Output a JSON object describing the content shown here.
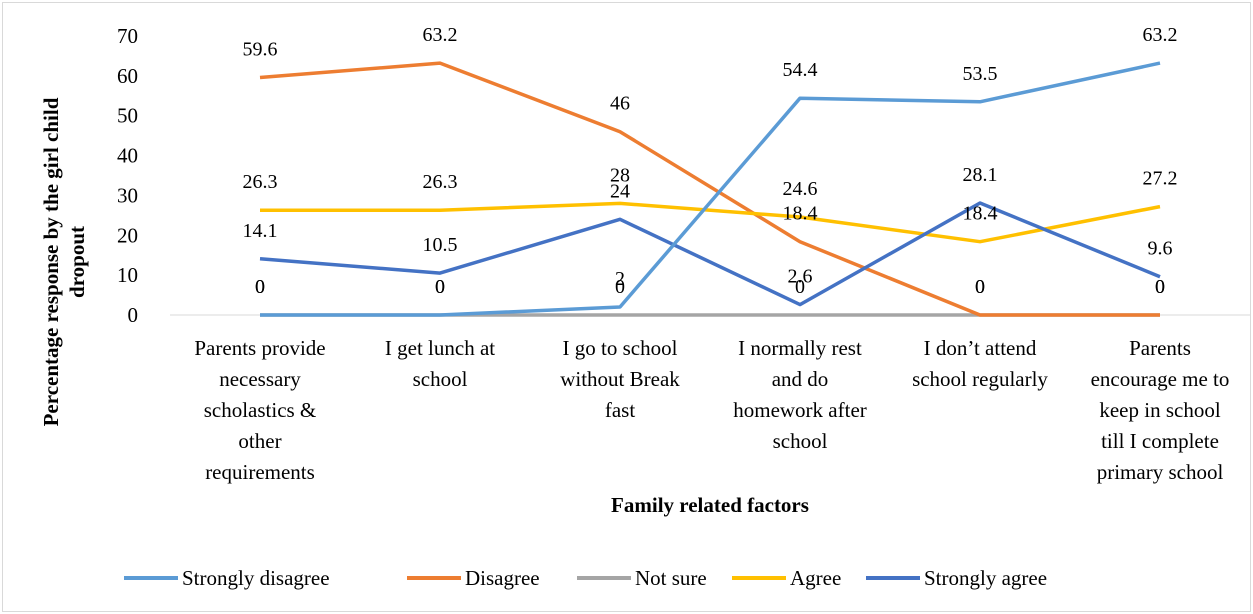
{
  "chart_data": {
    "type": "line",
    "xlabel": "Family related factors",
    "ylabel_lines": [
      "Percentage response by the girl  child",
      "dropout"
    ],
    "ylim": [
      0,
      70
    ],
    "yticks": [
      0,
      10,
      20,
      30,
      40,
      50,
      60,
      70
    ],
    "categories": [
      [
        "Parents provide",
        "necessary",
        "scholastics &",
        "other",
        "requirements"
      ],
      [
        "I get lunch at",
        "school"
      ],
      [
        "I go to school",
        "without Break",
        "fast"
      ],
      [
        "I normally rest",
        "and do",
        "homework after",
        "school"
      ],
      [
        "I don’t attend",
        "school regularly"
      ],
      [
        "Parents",
        "encourage me to",
        "keep in school",
        "till I complete",
        "primary school"
      ]
    ],
    "series": [
      {
        "name": "Strongly disagree",
        "color": "#5b9bd5",
        "values": [
          0,
          0,
          2,
          54.4,
          53.5,
          63.2
        ],
        "labels": [
          "0",
          "0",
          "2",
          "54.4",
          "53.5",
          "63.2"
        ]
      },
      {
        "name": "Disagree",
        "color": "#ed7d31",
        "values": [
          59.6,
          63.2,
          46,
          18.4,
          0,
          0
        ],
        "labels": [
          "59.6",
          "63.2",
          "46",
          "18.4",
          "0",
          "0"
        ]
      },
      {
        "name": "Not sure",
        "color": "#a5a5a5",
        "values": [
          0,
          0,
          0,
          0,
          0,
          0
        ],
        "labels": [
          "0",
          "0",
          "0",
          "0",
          "0",
          "0"
        ]
      },
      {
        "name": "Agree",
        "color": "#ffc000",
        "values": [
          26.3,
          26.3,
          28,
          24.6,
          18.4,
          27.2
        ],
        "labels": [
          "26.3",
          "26.3",
          "28",
          "24.6",
          "18.4",
          "27.2"
        ]
      },
      {
        "name": "Strongly agree",
        "color": "#4472c4",
        "values": [
          14.1,
          10.5,
          24,
          2.6,
          28.1,
          9.6
        ],
        "labels": [
          "14.1",
          "10.5",
          "24",
          "2.6",
          "28.1",
          "9.6"
        ]
      }
    ],
    "legend_position": "bottom",
    "grid": false
  }
}
